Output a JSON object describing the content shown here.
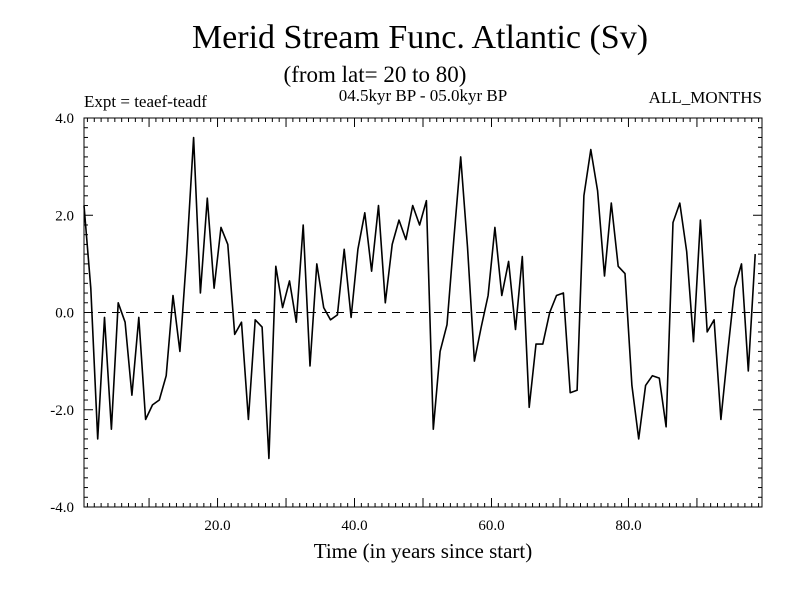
{
  "chart_data": {
    "type": "line",
    "title": "Merid Stream Func. Atlantic (Sv)",
    "subtitle": "(from lat= 20 to 80)",
    "left_label": "Expt = teaef-teadf",
    "center_label": "04.5kyr BP - 05.0kyr BP",
    "right_label": "ALL_MONTHS",
    "xlabel": "Time (in years since start)",
    "ylabel": "",
    "xlim": [
      0.5,
      99.5
    ],
    "ylim": [
      -4,
      4
    ],
    "xticks": [
      20,
      40,
      60,
      80
    ],
    "xtick_labels": [
      "20.0",
      "40.0",
      "60.0",
      "80.0"
    ],
    "yticks": [
      -4,
      -2,
      0,
      2,
      4
    ],
    "ytick_labels": [
      "-4.0",
      "-2.0",
      "0.0",
      "2.0",
      "4.0"
    ],
    "zero_line": "dashed",
    "series": [
      {
        "name": "Merid Stream Func.",
        "x_start": 0.5,
        "x_step": 1,
        "values": [
          2.2,
          0.5,
          -2.6,
          -0.1,
          -2.4,
          0.2,
          -0.2,
          -1.7,
          -0.1,
          -2.2,
          -1.9,
          -1.8,
          -1.3,
          0.35,
          -0.8,
          1.2,
          3.6,
          0.4,
          2.35,
          0.5,
          1.75,
          1.4,
          -0.45,
          -0.2,
          -2.2,
          -0.15,
          -0.3,
          -3.0,
          0.95,
          0.1,
          0.65,
          -0.2,
          1.8,
          -1.1,
          1.0,
          0.1,
          -0.15,
          -0.05,
          1.3,
          -0.1,
          1.3,
          2.05,
          0.85,
          2.2,
          0.2,
          1.4,
          1.9,
          1.5,
          2.2,
          1.8,
          2.3,
          -2.4,
          -0.8,
          -0.25,
          1.5,
          3.2,
          1.35,
          -1.0,
          -0.3,
          0.35,
          1.75,
          0.35,
          1.05,
          -0.35,
          1.15,
          -1.95,
          -0.65,
          -0.65,
          0.0,
          0.35,
          0.4,
          -1.65,
          -1.6,
          2.4,
          3.35,
          2.5,
          0.75,
          2.25,
          0.95,
          0.8,
          -1.5,
          -2.6,
          -1.5,
          -1.3,
          -1.35,
          -2.35,
          1.85,
          2.25,
          1.25,
          -0.6,
          1.9,
          -0.4,
          -0.15,
          -2.2,
          -0.8,
          0.5,
          1.0,
          -1.2,
          1.2
        ]
      }
    ]
  }
}
